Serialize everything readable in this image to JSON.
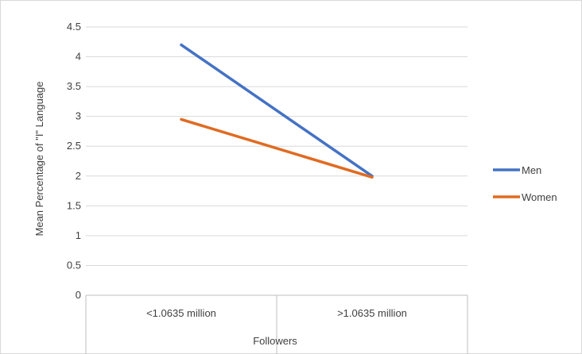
{
  "chart_data": {
    "type": "line",
    "title": "",
    "xlabel": "Followers",
    "ylabel": "Mean Percentage of \"I\" Language",
    "categories": [
      "<1.0635 million",
      ">1.0635 million"
    ],
    "ylim": [
      0,
      4.5
    ],
    "yticks": [
      0,
      0.5,
      1,
      1.5,
      2,
      2.5,
      3,
      3.5,
      4,
      4.5
    ],
    "ytick_labels": [
      "0",
      "0.5",
      "1",
      "1.5",
      "2",
      "2.5",
      "3",
      "3.5",
      "4",
      "4.5"
    ],
    "grid": true,
    "legend_position": "right",
    "series": [
      {
        "name": "Men",
        "values": [
          4.2,
          2.0
        ],
        "color": "#4472c4"
      },
      {
        "name": "Women",
        "values": [
          2.95,
          1.98
        ],
        "color": "#e06b22"
      }
    ]
  },
  "colors": {
    "gridline": "#d9d9d9",
    "axis": "#bfbfbf",
    "frame": "#d9d9d9"
  }
}
